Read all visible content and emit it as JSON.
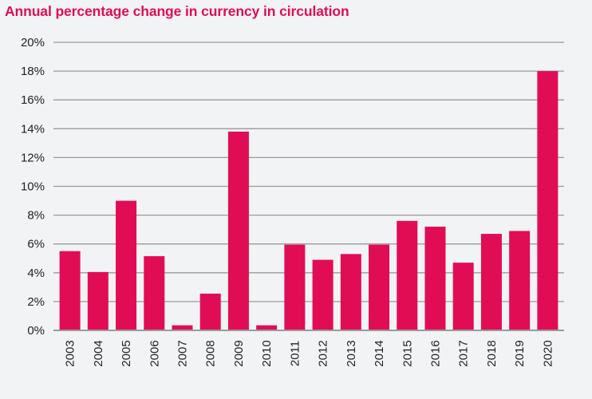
{
  "chart_data": {
    "type": "bar",
    "title": "Annual percentage change in currency in circulation",
    "xlabel": "",
    "ylabel": "",
    "categories": [
      "2003",
      "2004",
      "2005",
      "2006",
      "2007",
      "2008",
      "2009",
      "2010",
      "2011",
      "2012",
      "2013",
      "2014",
      "2015",
      "2016",
      "2017",
      "2018",
      "2019",
      "2020"
    ],
    "values": [
      5.5,
      4.05,
      9.0,
      5.15,
      0.35,
      2.55,
      13.8,
      0.35,
      5.95,
      4.9,
      5.3,
      5.95,
      7.6,
      7.2,
      4.7,
      6.7,
      6.9,
      18.0
    ],
    "ylim": [
      0,
      20
    ],
    "yticks": [
      0,
      2,
      4,
      6,
      8,
      10,
      12,
      14,
      16,
      18,
      20
    ],
    "ytick_labels": [
      "0%",
      "2%",
      "4%",
      "6%",
      "8%",
      "10%",
      "12%",
      "14%",
      "16%",
      "18%",
      "20%"
    ],
    "grid": true,
    "legend": null,
    "bar_color": "#e00d55",
    "grid_color": "#9a9a9a"
  }
}
